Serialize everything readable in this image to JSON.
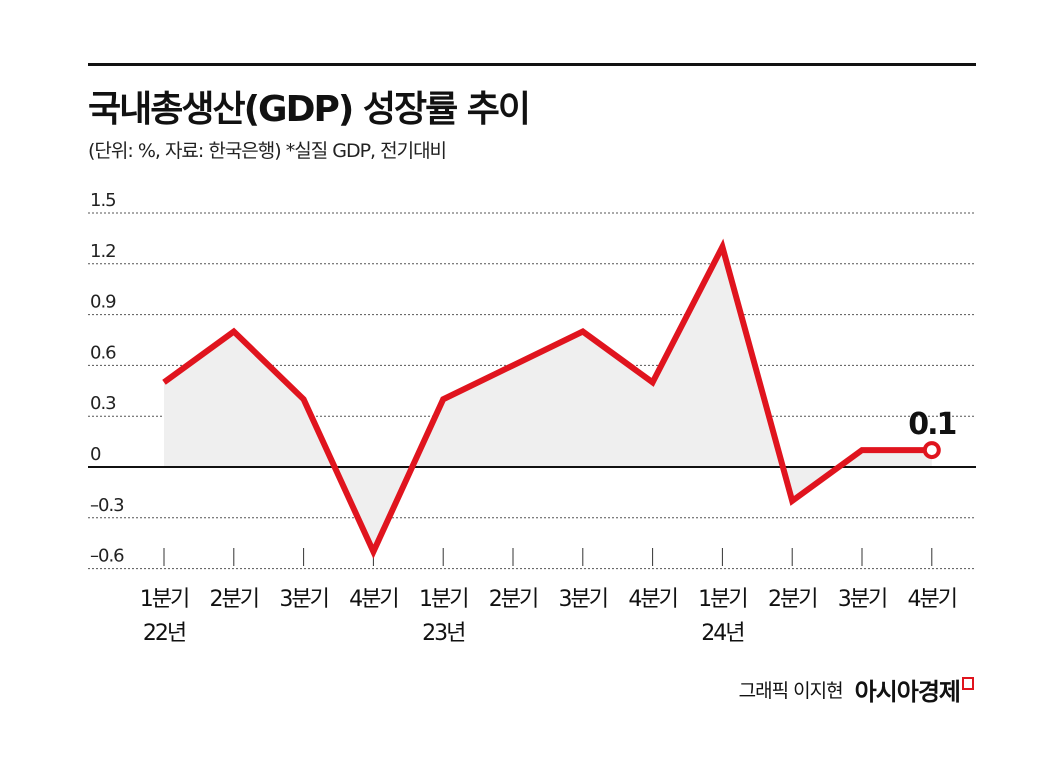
{
  "chart_data": {
    "type": "line",
    "title": "국내총생산(GDP) 성장률 추이",
    "subtitle": "(단위: %, 자료: 한국은행)  *실질 GDP, 전기대비",
    "categories": [
      "1분기",
      "2분기",
      "3분기",
      "4분기",
      "1분기",
      "2분기",
      "3분기",
      "4분기",
      "1분기",
      "2분기",
      "3분기",
      "4분기"
    ],
    "year_labels": [
      {
        "index": 0,
        "label": "22년"
      },
      {
        "index": 4,
        "label": "23년"
      },
      {
        "index": 8,
        "label": "24년"
      }
    ],
    "values": [
      0.5,
      0.8,
      0.4,
      -0.5,
      0.4,
      0.6,
      0.8,
      0.5,
      1.3,
      -0.2,
      0.1,
      0.1
    ],
    "y_ticks": [
      "1.5",
      "1.2",
      "0.9",
      "0.6",
      "0.3",
      "0",
      "-0.3",
      "-0.6"
    ],
    "ylim": [
      -0.6,
      1.5
    ],
    "grid": true,
    "last_label": "0.1",
    "line_color": "#e0141e",
    "fill_color": "#efefef"
  },
  "credit": {
    "graphic": "그래픽 이지현",
    "brand": "아시아경제"
  }
}
